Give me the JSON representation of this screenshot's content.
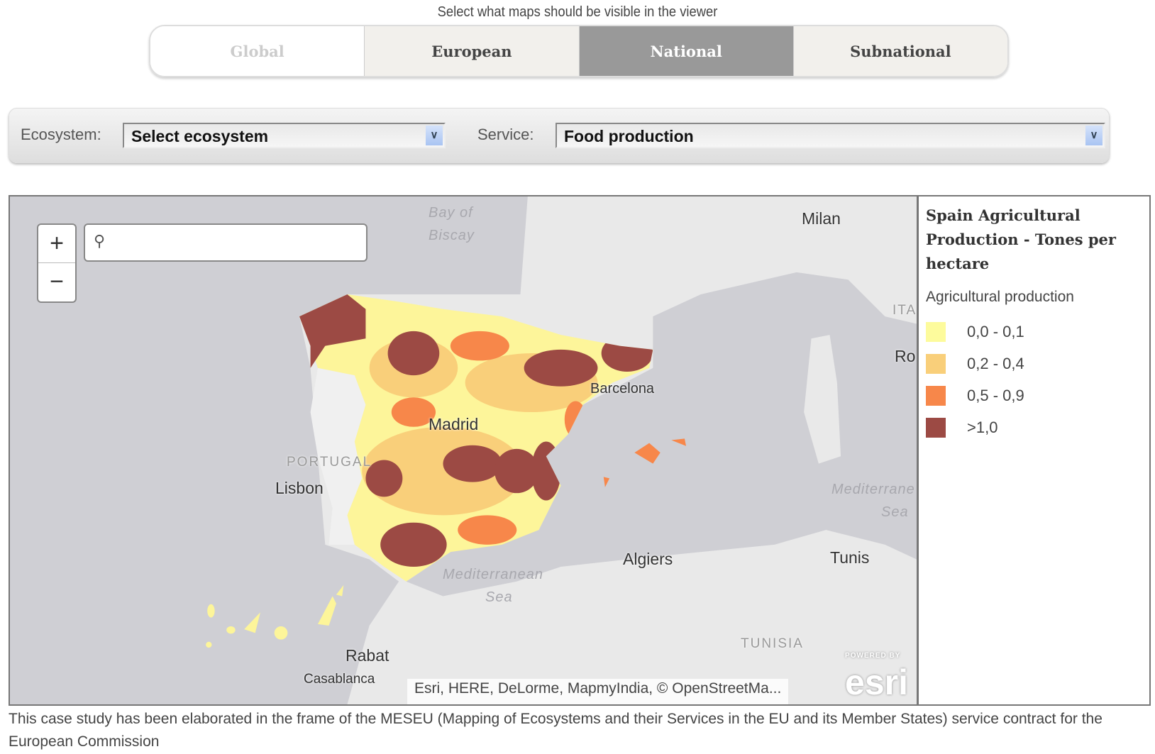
{
  "instruction": "Select what maps should be visible in the viewer",
  "tabs": [
    {
      "label": "Global",
      "state": "disabled"
    },
    {
      "label": "European",
      "state": "normal"
    },
    {
      "label": "National",
      "state": "active"
    },
    {
      "label": "Subnational",
      "state": "normal"
    }
  ],
  "filters": {
    "ecosystem_label": "Ecosystem:",
    "ecosystem_value": "Select ecosystem",
    "service_label": "Service:",
    "service_value": "Food production"
  },
  "map": {
    "zoom_in": "+",
    "zoom_out": "−",
    "search_placeholder": "",
    "search_icon": "search-icon",
    "labels": {
      "bay_of_biscay_1": "Bay of",
      "bay_of_biscay_2": "Biscay",
      "milan": "Milan",
      "italy": "ITA",
      "rome": "Ro",
      "barcelona": "Barcelona",
      "madrid": "Madrid",
      "portugal": "PORTUGAL",
      "lisbon": "Lisbon",
      "med1_1": "Mediterrane",
      "med1_2": "Sea",
      "algiers": "Algiers",
      "tunis": "Tunis",
      "med2_1": "Mediterranean",
      "med2_2": "Sea",
      "rabat": "Rabat",
      "casablanca": "Casablanca",
      "tunisia": "TUNISIA"
    },
    "attribution": "Esri, HERE, DeLorme, MapmyIndia, © OpenStreetMa...",
    "logo": "esri",
    "logo_sub": "POWERED BY"
  },
  "legend": {
    "title": "Spain Agricultural Production - Tones per hectare",
    "subtitle": "Agricultural production",
    "items": [
      {
        "label": "0,0 - 0,1",
        "color": "#fdfb9c"
      },
      {
        "label": "0,2 - 0,4",
        "color": "#f9cf7a"
      },
      {
        "label": "0,5 - 0,9",
        "color": "#f7874a"
      },
      {
        "label": ">1,0",
        "color": "#9c4a44"
      }
    ]
  },
  "footer": "This case study has been elaborated in the frame of the MESEU (Mapping of Ecosystems and their Services in the EU and its Member States) service contract for the European Commission"
}
